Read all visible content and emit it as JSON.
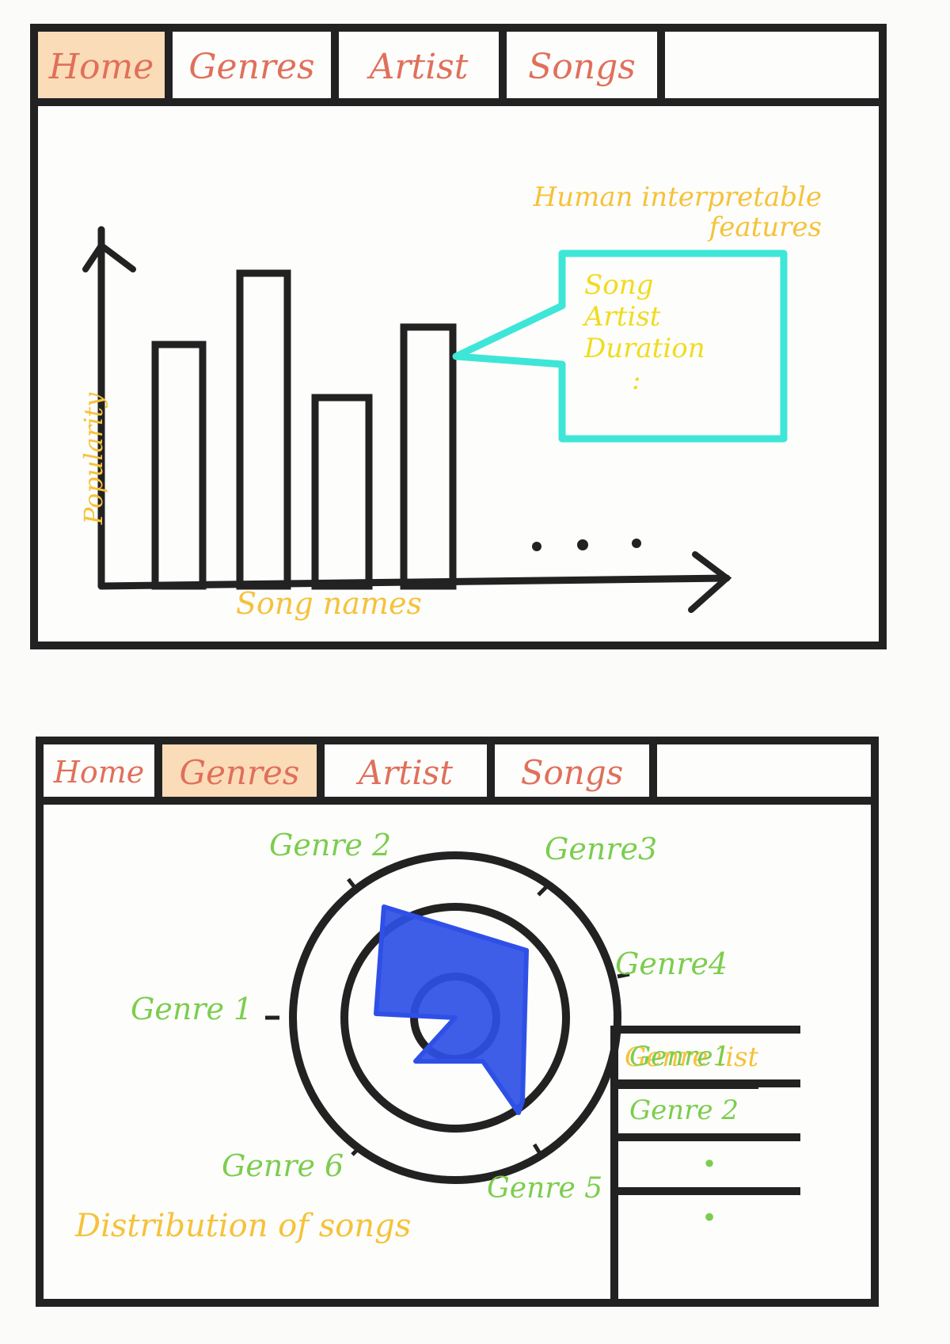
{
  "wireframe_home": {
    "tabs": [
      {
        "label": "Home",
        "active": true
      },
      {
        "label": "Genres",
        "active": false
      },
      {
        "label": "Artist",
        "active": false
      },
      {
        "label": "Songs",
        "active": false
      }
    ],
    "annotation": "Human interpretable features",
    "annotation_line1": "Human interpretable",
    "annotation_line2": "features",
    "tooltip_lines": [
      "Song",
      "Artist",
      "Duration",
      ":"
    ],
    "ylabel": "Popularity",
    "xlabel": "Song names",
    "ellipsis": ". . ."
  },
  "wireframe_genres": {
    "tabs": [
      {
        "label": "Home",
        "active": false
      },
      {
        "label": "Genres",
        "active": true
      },
      {
        "label": "Artist",
        "active": false
      },
      {
        "label": "Songs",
        "active": false
      }
    ],
    "radar_axes": [
      "Genre 1",
      "Genre 2",
      "Genre3",
      "Genre4",
      "Genre 5",
      "Genre 6"
    ],
    "caption": "Distribution of songs",
    "genre_list": {
      "title": "Genre list",
      "items": [
        "Genre1",
        "Genre 2",
        "•",
        "•"
      ]
    }
  },
  "colors": {
    "outline": "#222222",
    "tab_text": "#e0705a",
    "tab_active_bg": "#fbdcb8",
    "annotation_yellow": "#f5c23a",
    "genre_green": "#7ccd4e",
    "tooltip_cyan": "#3ee6d8",
    "radar_fill": "#2f50e6"
  },
  "chart_data": {
    "type": "bar",
    "categories": [],
    "values": [],
    "xlabel": "Song names",
    "ylabel": "Popularity",
    "note": "sketch bars, no numeric scale"
  }
}
